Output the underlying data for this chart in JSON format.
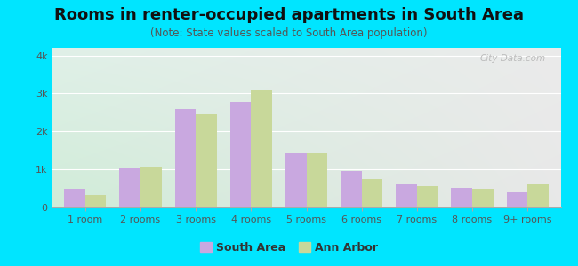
{
  "title": "Rooms in renter-occupied apartments in South Area",
  "subtitle": "(Note: State values scaled to South Area population)",
  "categories": [
    "1 room",
    "2 rooms",
    "3 rooms",
    "4 rooms",
    "5 rooms",
    "6 rooms",
    "7 rooms",
    "8 rooms",
    "9+ rooms"
  ],
  "south_area": [
    500,
    1050,
    2600,
    2780,
    1450,
    950,
    620,
    510,
    420
  ],
  "ann_arbor": [
    320,
    1080,
    2440,
    3100,
    1450,
    740,
    570,
    490,
    610
  ],
  "south_area_color": "#c9a8e0",
  "ann_arbor_color": "#c8d89a",
  "background_outer": "#00e5ff",
  "bg_top_left": "#d8efe0",
  "bg_top_right": "#e8e8e8",
  "bg_bottom_left": "#c8ecd4",
  "bg_bottom_right": "#f0f0f0",
  "ylim": [
    0,
    4200
  ],
  "yticks": [
    0,
    1000,
    2000,
    3000,
    4000
  ],
  "ytick_labels": [
    "0",
    "1k",
    "2k",
    "3k",
    "4k"
  ],
  "bar_width": 0.38,
  "legend_south_label": "South Area",
  "legend_ann_label": "Ann Arbor",
  "title_fontsize": 13,
  "subtitle_fontsize": 8.5,
  "watermark": "City-Data.com"
}
